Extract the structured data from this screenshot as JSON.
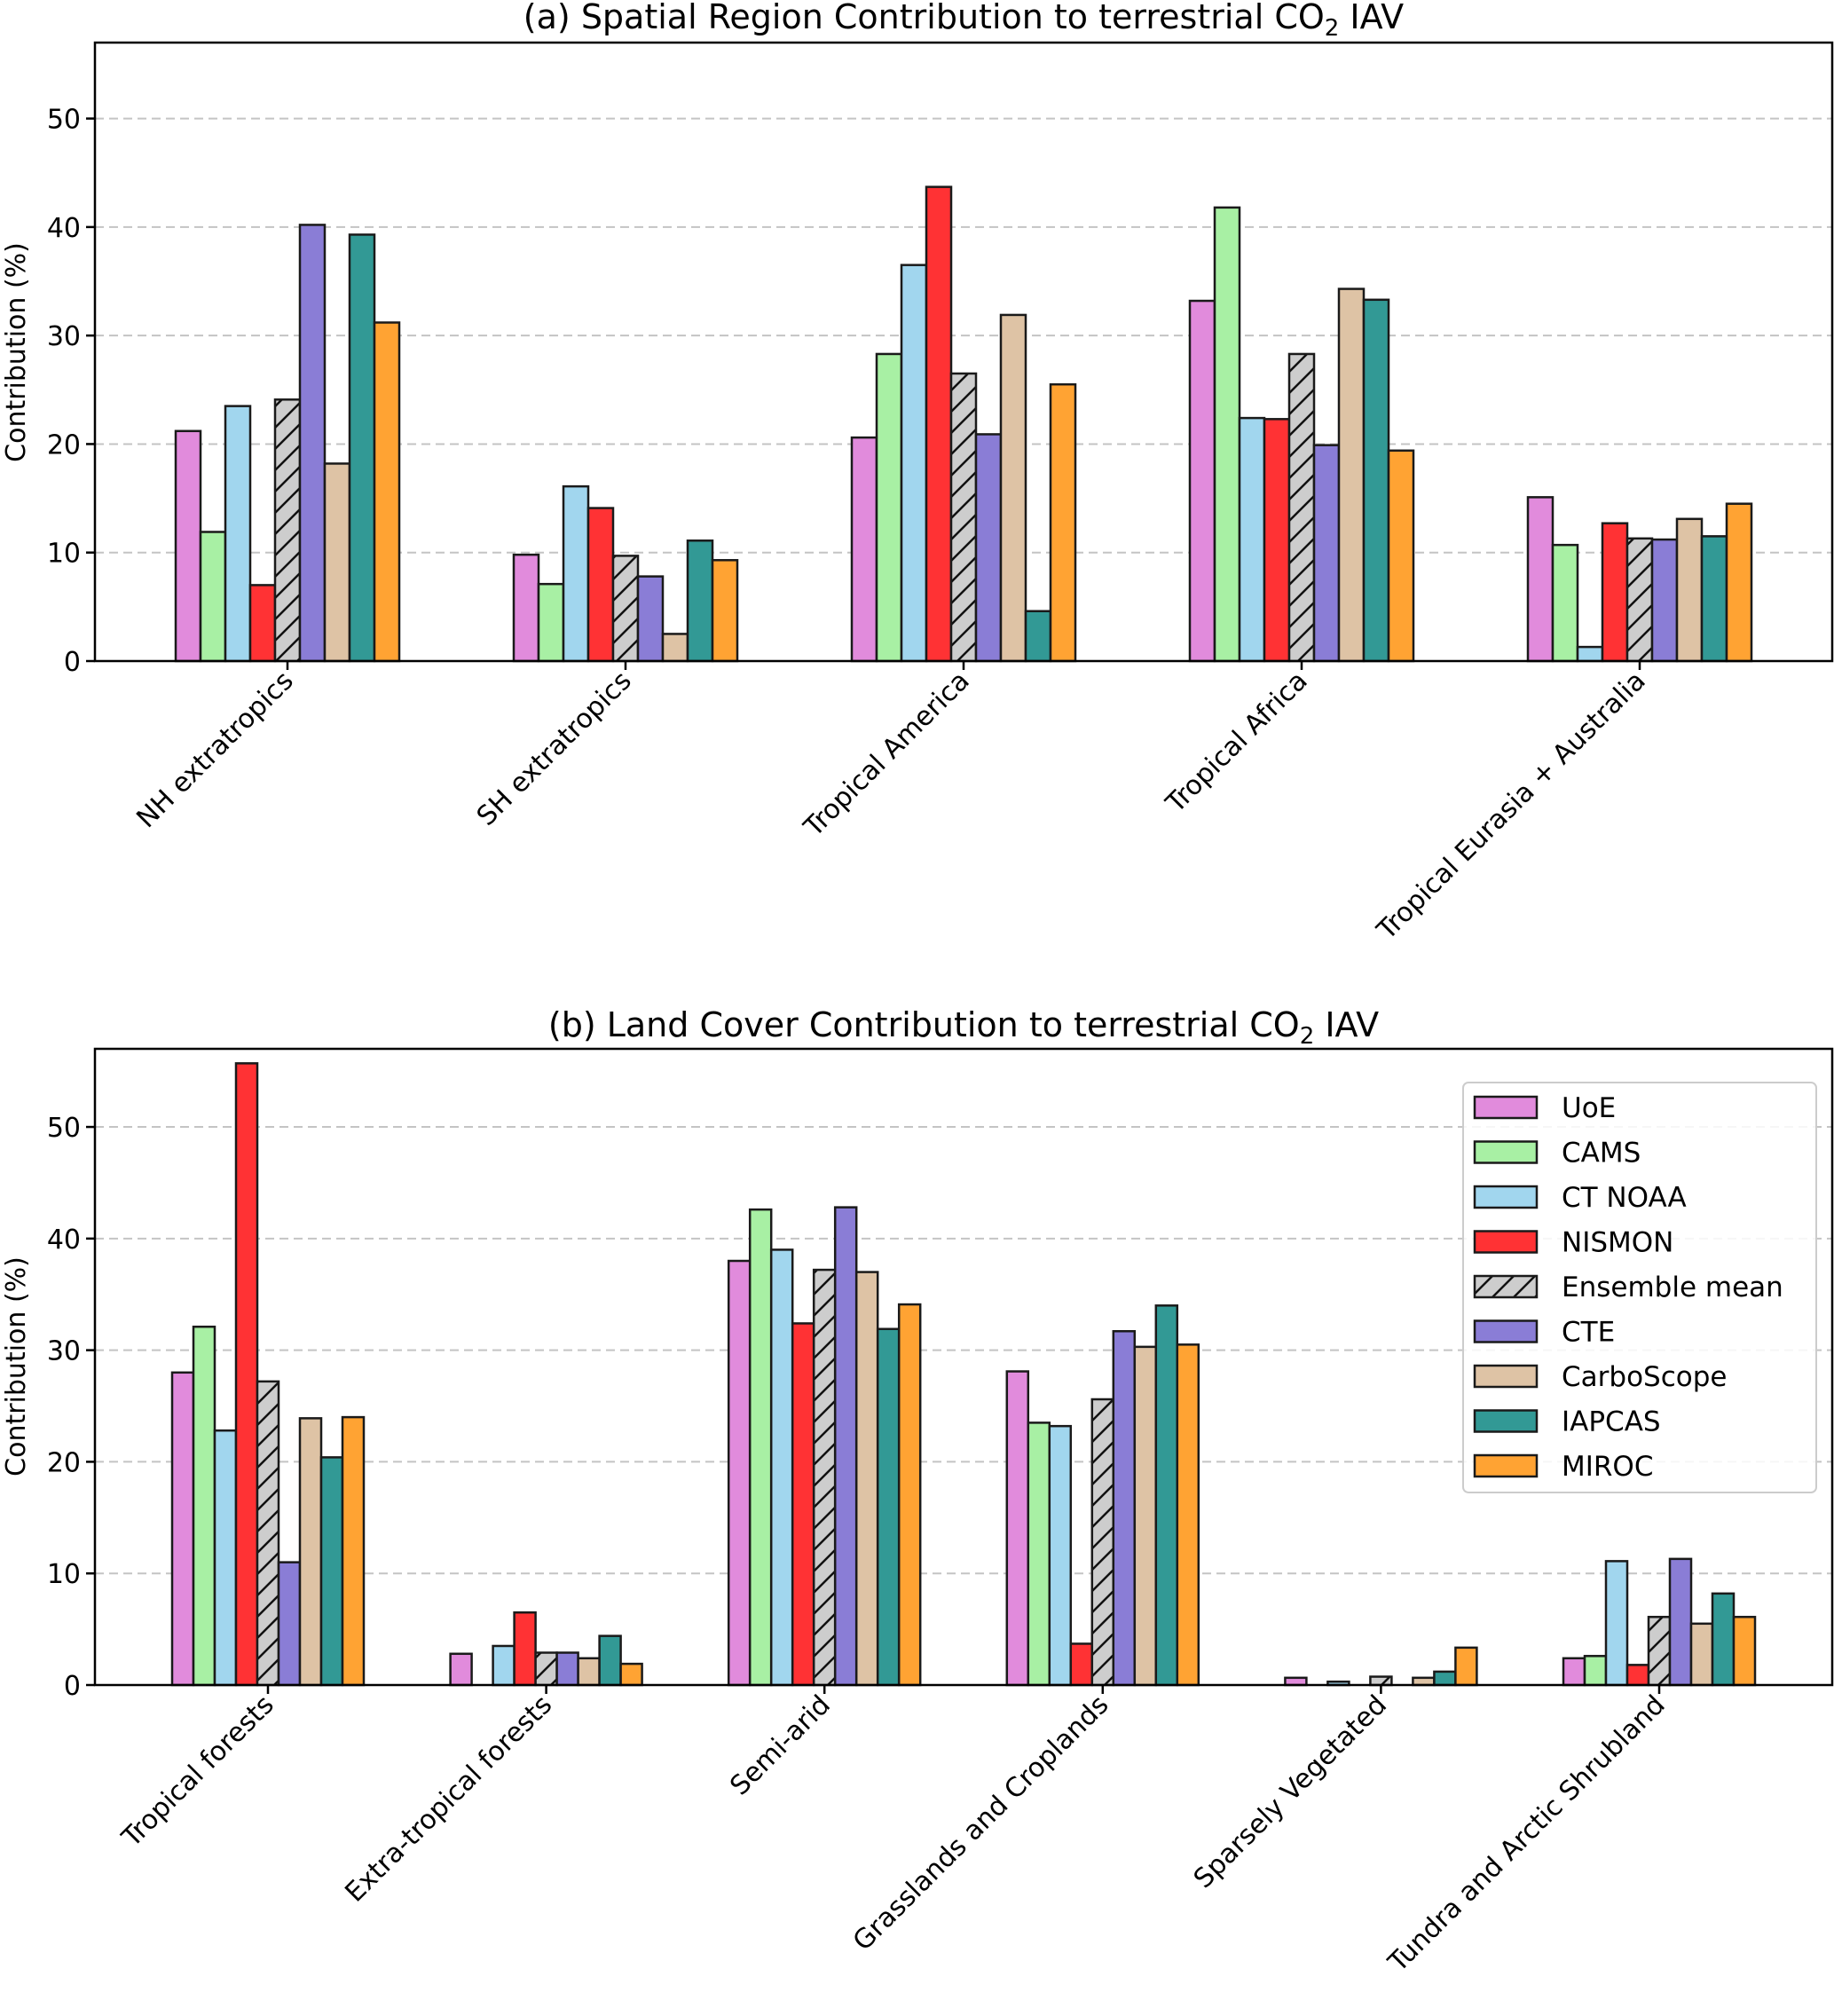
{
  "series_meta": [
    {
      "name": "UoE",
      "color": "#e18bdc",
      "hatch": false
    },
    {
      "name": "CAMS",
      "color": "#a8f0a4",
      "hatch": false
    },
    {
      "name": "CT NOAA",
      "color": "#a1d6ee",
      "hatch": false
    },
    {
      "name": "NISMON",
      "color": "#ff3234",
      "hatch": false
    },
    {
      "name": "Ensemble mean",
      "color": "#cdcdcd",
      "hatch": true
    },
    {
      "name": "CTE",
      "color": "#8a7dd6",
      "hatch": false
    },
    {
      "name": "CarboScope",
      "color": "#dec3a5",
      "hatch": false
    },
    {
      "name": "IAPCAS",
      "color": "#329995",
      "hatch": false
    },
    {
      "name": "MIROC",
      "color": "#ffa333",
      "hatch": false
    }
  ],
  "chart_data": [
    {
      "type": "bar",
      "title": "(a) Spatial Region Contribution to terrestrial CO",
      "title_sub": "2",
      "title_suffix": " IAV",
      "xlabel": "",
      "ylabel": "Contribution (%)",
      "ylim": [
        0,
        57
      ],
      "yticks": [
        0,
        10,
        20,
        30,
        40,
        50
      ],
      "grid": "y-dashed",
      "legend": "none",
      "categories": [
        "NH extratropics",
        "SH extratropics",
        "Tropical America",
        "Tropical Africa",
        "Tropical Eurasia + Australia"
      ],
      "series": [
        {
          "name": "UoE",
          "values": [
            21.2,
            9.8,
            20.6,
            33.2,
            15.1
          ]
        },
        {
          "name": "CAMS",
          "values": [
            11.9,
            7.1,
            28.3,
            41.8,
            10.7
          ]
        },
        {
          "name": "CT NOAA",
          "values": [
            23.5,
            16.1,
            36.5,
            22.4,
            1.3
          ]
        },
        {
          "name": "NISMON",
          "values": [
            7.0,
            14.1,
            43.7,
            22.3,
            12.7
          ]
        },
        {
          "name": "Ensemble mean",
          "values": [
            24.1,
            9.7,
            26.5,
            28.3,
            11.3
          ]
        },
        {
          "name": "CTE",
          "values": [
            40.2,
            7.8,
            20.9,
            19.9,
            11.2
          ]
        },
        {
          "name": "CarboScope",
          "values": [
            18.2,
            2.5,
            31.9,
            34.3,
            13.1
          ]
        },
        {
          "name": "IAPCAS",
          "values": [
            39.3,
            11.1,
            4.6,
            33.3,
            11.5
          ]
        },
        {
          "name": "MIROC",
          "values": [
            31.2,
            9.3,
            25.5,
            19.4,
            14.5
          ]
        }
      ]
    },
    {
      "type": "bar",
      "title": "(b) Land Cover Contribution to terrestrial CO",
      "title_sub": "2",
      "title_suffix": " IAV",
      "xlabel": "",
      "ylabel": "Contribution (%)",
      "ylim": [
        0,
        57
      ],
      "yticks": [
        0,
        10,
        20,
        30,
        40,
        50
      ],
      "grid": "y-dashed",
      "legend": "top-right",
      "categories": [
        "Tropical forests",
        "Extra-tropical forests",
        "Semi-arid",
        "Grasslands and Croplands",
        "Sparsely Vegetated",
        "Tundra and Arctic Shrubland"
      ],
      "series": [
        {
          "name": "UoE",
          "values": [
            28.0,
            2.8,
            38.0,
            28.1,
            0.65,
            2.4
          ]
        },
        {
          "name": "CAMS",
          "values": [
            32.1,
            0.0,
            42.6,
            23.5,
            0.0,
            2.6
          ]
        },
        {
          "name": "CT NOAA",
          "values": [
            22.8,
            3.5,
            39.0,
            23.2,
            0.3,
            11.1
          ]
        },
        {
          "name": "NISMON",
          "values": [
            55.7,
            6.5,
            32.4,
            3.7,
            0.0,
            1.8
          ]
        },
        {
          "name": "Ensemble mean",
          "values": [
            27.2,
            2.9,
            37.2,
            25.6,
            0.75,
            6.1
          ]
        },
        {
          "name": "CTE",
          "values": [
            11.0,
            2.9,
            42.8,
            31.7,
            0.0,
            11.3
          ]
        },
        {
          "name": "CarboScope",
          "values": [
            23.9,
            2.4,
            37.0,
            30.3,
            0.65,
            5.5
          ]
        },
        {
          "name": "IAPCAS",
          "values": [
            20.4,
            4.4,
            31.9,
            34.0,
            1.2,
            8.2
          ]
        },
        {
          "name": "MIROC",
          "values": [
            24.0,
            1.9,
            34.1,
            30.5,
            3.35,
            6.1
          ]
        }
      ]
    }
  ]
}
